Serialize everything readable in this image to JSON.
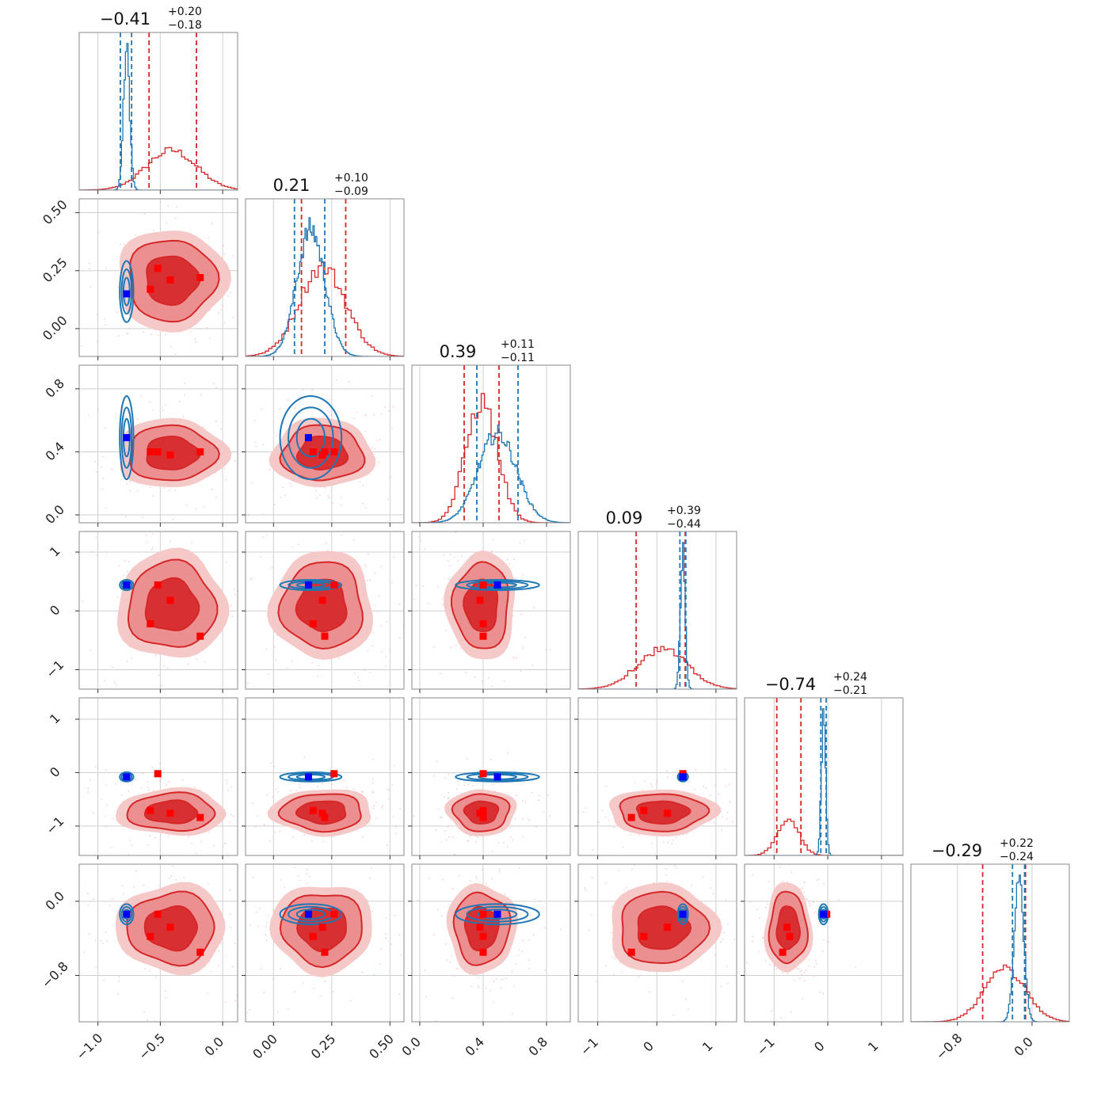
{
  "chart_data": {
    "type": "corner",
    "colors": {
      "red": "#d62728",
      "blue": "#1f77b4",
      "red_marker": "#ff0000",
      "blue_marker": "#0000ff",
      "grid": "#cfcfcf",
      "frame": "#888888"
    },
    "params": [
      {
        "title": {
          "median": "−0.41",
          "plus": "+0.20",
          "minus": "−0.18"
        },
        "range": [
          -1.15,
          0.12
        ],
        "ticks": [
          -1.0,
          -0.5,
          0.0
        ],
        "tick_labels": [
          "−1.0",
          "−0.5",
          "0.0"
        ],
        "red": {
          "mu": -0.41,
          "sd": 0.2,
          "q": [
            -0.59,
            -0.21
          ]
        },
        "blue": {
          "mu": -0.77,
          "sd": 0.025,
          "q": [
            -0.82,
            -0.73
          ]
        }
      },
      {
        "title": {
          "median": "0.21",
          "plus": "+0.10",
          "minus": "−0.09"
        },
        "range": [
          -0.12,
          0.56
        ],
        "ticks": [
          0.0,
          0.25,
          0.5
        ],
        "tick_labels": [
          "0.00",
          "0.25",
          "0.50"
        ],
        "red": {
          "mu": 0.21,
          "sd": 0.1,
          "q": [
            0.12,
            0.31
          ]
        },
        "blue": {
          "mu": 0.16,
          "sd": 0.06,
          "q": [
            0.09,
            0.22
          ]
        }
      },
      {
        "title": {
          "median": "0.39",
          "plus": "+0.11",
          "minus": "−0.11"
        },
        "range": [
          -0.05,
          0.95
        ],
        "ticks": [
          0.0,
          0.4,
          0.8
        ],
        "tick_labels": [
          "0.0",
          "0.4",
          "0.8"
        ],
        "red": {
          "mu": 0.39,
          "sd": 0.1,
          "q": [
            0.28,
            0.5
          ]
        },
        "blue": {
          "mu": 0.49,
          "sd": 0.12,
          "q": [
            0.36,
            0.62
          ]
        }
      },
      {
        "title": {
          "median": "0.09",
          "plus": "+0.39",
          "minus": "−0.44"
        },
        "range": [
          -1.33,
          1.35
        ],
        "ticks": [
          -1,
          0,
          1
        ],
        "tick_labels": [
          "−1",
          "0",
          "1"
        ],
        "red": {
          "mu": 0.09,
          "sd": 0.42,
          "q": [
            -0.35,
            0.48
          ]
        },
        "blue": {
          "mu": 0.44,
          "sd": 0.04,
          "q": [
            0.39,
            0.49
          ]
        }
      },
      {
        "title": {
          "median": "−0.74",
          "plus": "+0.24",
          "minus": "−0.21"
        },
        "range": [
          -1.55,
          1.4
        ],
        "ticks": [
          -1,
          0,
          1
        ],
        "tick_labels": [
          "−1",
          "0",
          "1"
        ],
        "red": {
          "mu": -0.74,
          "sd": 0.2,
          "q": [
            -0.95,
            -0.5
          ]
        },
        "blue": {
          "mu": -0.08,
          "sd": 0.04,
          "q": [
            -0.13,
            -0.03
          ]
        }
      },
      {
        "title": {
          "median": "−0.29",
          "plus": "+0.22",
          "minus": "−0.24"
        },
        "range": [
          -1.3,
          0.4
        ],
        "ticks": [
          -0.8,
          0.0
        ],
        "tick_labels": [
          "−0.8",
          "0.0"
        ],
        "red": {
          "mu": -0.29,
          "sd": 0.22,
          "q": [
            -0.53,
            -0.07
          ]
        },
        "blue": {
          "mu": -0.14,
          "sd": 0.05,
          "q": [
            -0.21,
            -0.08
          ]
        }
      }
    ],
    "blue_marker": [
      -0.77,
      0.15,
      0.49,
      0.44,
      -0.08,
      -0.14
    ],
    "red_markers": [
      [
        -0.52,
        0.26,
        0.4,
        0.44,
        -0.02,
        -0.14
      ],
      [
        -0.58,
        0.17,
        0.4,
        -0.22,
        -0.71,
        -0.38
      ],
      [
        -0.42,
        0.21,
        0.38,
        0.18,
        -0.76,
        -0.28
      ],
      [
        -0.18,
        0.22,
        0.4,
        -0.43,
        -0.84,
        -0.55
      ]
    ]
  }
}
